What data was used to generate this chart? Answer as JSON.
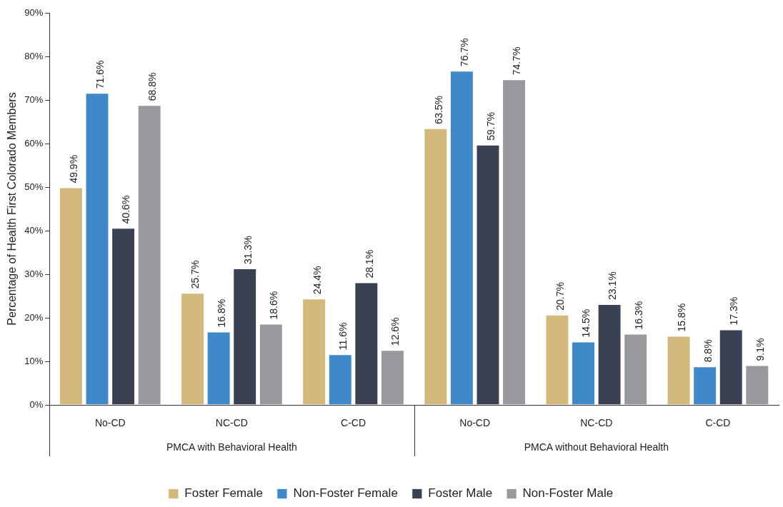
{
  "chart_data": {
    "type": "bar",
    "ylabel": "Percentage of Health First Colorado Members",
    "categories": [
      "No-CD",
      "NC-CD",
      "C-CD",
      "No-CD",
      "NC-CD",
      "C-CD"
    ],
    "annotations": [
      "PMCA with Behavioral Health",
      "PMCA without Behavioral Health"
    ],
    "series": [
      {
        "name": "Foster Female",
        "color": "#d3b97b",
        "values": [
          49.9,
          25.7,
          24.4,
          63.5,
          20.7,
          15.8
        ],
        "value_labels": [
          "49.9%",
          "25.7%",
          "24.4%",
          "63.5%",
          "20.7%",
          "15.8%"
        ]
      },
      {
        "name": "Non-Foster Female",
        "color": "#3f89c9",
        "values": [
          71.6,
          16.8,
          11.6,
          76.7,
          14.5,
          8.8
        ],
        "value_labels": [
          "71.6%",
          "16.8%",
          "11.6%",
          "76.7%",
          "14.5%",
          "8.8%"
        ]
      },
      {
        "name": "Foster Male",
        "color": "#3a4152",
        "values": [
          40.6,
          31.3,
          28.1,
          59.7,
          23.1,
          17.3
        ],
        "value_labels": [
          "40.6%",
          "31.3%",
          "28.1%",
          "59.7%",
          "23.1%",
          "17.3%"
        ]
      },
      {
        "name": "Non-Foster Male",
        "color": "#97999c",
        "values": [
          68.8,
          18.6,
          12.6,
          74.7,
          16.3,
          9.1
        ],
        "value_labels": [
          "68.8%",
          "18.6%",
          "12.6%",
          "74.7%",
          "16.3%",
          "9.1%"
        ]
      }
    ],
    "ylim": [
      0,
      90
    ],
    "yticks": [
      {
        "value": 0,
        "label": "0%"
      },
      {
        "value": 10,
        "label": "10%"
      },
      {
        "value": 20,
        "label": "20%"
      },
      {
        "value": 30,
        "label": "30%"
      },
      {
        "value": 40,
        "label": "40%"
      },
      {
        "value": 50,
        "label": "50%"
      },
      {
        "value": 60,
        "label": "60%"
      },
      {
        "value": 70,
        "label": "70%"
      },
      {
        "value": 80,
        "label": "80%"
      },
      {
        "value": 90,
        "label": "90%"
      }
    ],
    "grid": false,
    "legend": "bottom"
  }
}
